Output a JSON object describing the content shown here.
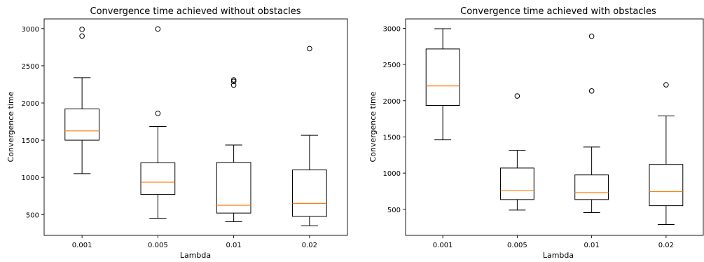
{
  "chart_data": [
    {
      "type": "boxplot",
      "title": "Convergence time achieved without obstacles",
      "xlabel": "Lambda",
      "ylabel": "Convergence time",
      "categories": [
        "0.001",
        "0.005",
        "0.01",
        "0.02"
      ],
      "yticks": [
        500,
        1000,
        1500,
        2000,
        2500,
        3000
      ],
      "ylim": [
        220,
        3130
      ],
      "boxes": [
        {
          "whisker_low": 1050,
          "q1": 1500,
          "median": 1625,
          "q3": 1920,
          "whisker_high": 2340,
          "outliers": [
            2990,
            2900
          ]
        },
        {
          "whisker_low": 450,
          "q1": 770,
          "median": 935,
          "q3": 1195,
          "whisker_high": 1685,
          "outliers": [
            1860,
            2995
          ]
        },
        {
          "whisker_low": 405,
          "q1": 520,
          "median": 625,
          "q3": 1200,
          "whisker_high": 1435,
          "outliers": [
            2240,
            2290,
            2310
          ]
        },
        {
          "whisker_low": 350,
          "q1": 475,
          "median": 650,
          "q3": 1100,
          "whisker_high": 1565,
          "outliers": [
            2730
          ]
        }
      ],
      "colors": {
        "median": "#ff7f0e",
        "box": "#000000"
      }
    },
    {
      "type": "boxplot",
      "title": "Convergence time achieved with obstacles",
      "xlabel": "Lambda",
      "ylabel": "Convergence time",
      "categories": [
        "0.001",
        "0.005",
        "0.01",
        "0.02"
      ],
      "yticks": [
        500,
        1000,
        1500,
        2000,
        2500,
        3000
      ],
      "ylim": [
        140,
        3130
      ],
      "boxes": [
        {
          "whisker_low": 1460,
          "q1": 1935,
          "median": 2205,
          "q3": 2715,
          "whisker_high": 2995,
          "outliers": []
        },
        {
          "whisker_low": 490,
          "q1": 635,
          "median": 760,
          "q3": 1070,
          "whisker_high": 1315,
          "outliers": [
            2065
          ]
        },
        {
          "whisker_low": 455,
          "q1": 635,
          "median": 730,
          "q3": 975,
          "whisker_high": 1360,
          "outliers": [
            2135,
            2890
          ]
        },
        {
          "whisker_low": 290,
          "q1": 550,
          "median": 745,
          "q3": 1120,
          "whisker_high": 1790,
          "outliers": [
            2220
          ]
        }
      ],
      "colors": {
        "median": "#ff7f0e",
        "box": "#000000"
      }
    }
  ]
}
